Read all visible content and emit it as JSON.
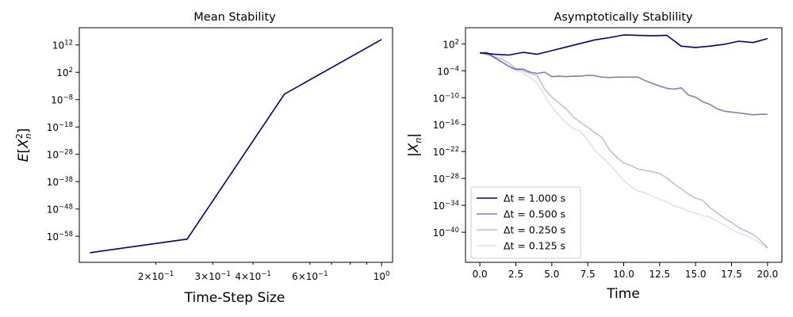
{
  "chart_data": [
    {
      "type": "line",
      "title": "Mean Stability",
      "xlabel": "Time-Step Size",
      "ylabel": "E[X_n^2]",
      "xscale": "log",
      "yscale": "log",
      "xlim_log10": [
        -0.936,
        0.034
      ],
      "ylim_log10": [
        -67.5,
        18.3
      ],
      "color": "#000080",
      "x": [
        0.125,
        0.25,
        0.5,
        1.0
      ],
      "y": [
        1e-64,
        1e-59,
        1e-06,
        100000000000000.0
      ],
      "xticks_major": [
        {
          "v": 1.0,
          "label": "10",
          "exp": "0"
        }
      ],
      "xticks_minor": [
        {
          "v": 0.2,
          "label": "2×10",
          "exp": "−1"
        },
        {
          "v": 0.3,
          "label": "3×10",
          "exp": "−1"
        },
        {
          "v": 0.4,
          "label": "4×10",
          "exp": "−1"
        },
        {
          "v": 0.6,
          "label": "6×10",
          "exp": "−1"
        }
      ],
      "xticks_minor_unlabeled": [
        0.7,
        0.8,
        0.9
      ],
      "yticks": [
        {
          "e": 12,
          "label": "10",
          "exp": "12"
        },
        {
          "e": 2,
          "label": "10",
          "exp": "2"
        },
        {
          "e": -8,
          "label": "10",
          "exp": "−8"
        },
        {
          "e": -18,
          "label": "10",
          "exp": "−18"
        },
        {
          "e": -28,
          "label": "10",
          "exp": "−28"
        },
        {
          "e": -38,
          "label": "10",
          "exp": "−38"
        },
        {
          "e": -48,
          "label": "10",
          "exp": "−48"
        },
        {
          "e": -58,
          "label": "10",
          "exp": "−58"
        }
      ]
    },
    {
      "type": "line",
      "title": "Asymptotically Stablility",
      "xlabel": "Time",
      "ylabel": "|X_n|",
      "yscale": "log",
      "xlim": [
        -1.0,
        21.0
      ],
      "ylim_log10": [
        -46.7,
        5.6
      ],
      "legend_position": "lower-left",
      "xticks": [
        {
          "v": 0,
          "label": "0.0"
        },
        {
          "v": 2.5,
          "label": "2.5"
        },
        {
          "v": 5,
          "label": "5.0"
        },
        {
          "v": 7.5,
          "label": "7.5"
        },
        {
          "v": 10,
          "label": "10.0"
        },
        {
          "v": 12.5,
          "label": "12.5"
        },
        {
          "v": 15,
          "label": "15.0"
        },
        {
          "v": 17.5,
          "label": "17.5"
        },
        {
          "v": 20,
          "label": "20.0"
        }
      ],
      "yticks": [
        {
          "e": 2,
          "label": "10",
          "exp": "2"
        },
        {
          "e": -4,
          "label": "10",
          "exp": "−4"
        },
        {
          "e": -10,
          "label": "10",
          "exp": "−10"
        },
        {
          "e": -16,
          "label": "10",
          "exp": "−16"
        },
        {
          "e": -22,
          "label": "10",
          "exp": "−22"
        },
        {
          "e": -28,
          "label": "10",
          "exp": "−28"
        },
        {
          "e": -34,
          "label": "10",
          "exp": "−34"
        },
        {
          "e": -40,
          "label": "10",
          "exp": "−40"
        }
      ],
      "series": [
        {
          "name": "Δt = 1.000 s",
          "color": "#000080",
          "opacity": 1.0,
          "x": [
            0,
            1,
            2,
            3,
            4,
            5,
            6,
            7,
            8,
            9,
            10,
            11,
            12,
            13,
            14,
            15,
            16,
            17,
            18,
            19,
            20
          ],
          "y_log10": [
            0.0,
            -0.3,
            -0.5,
            0.1,
            -0.3,
            0.5,
            1.3,
            2.1,
            2.9,
            3.4,
            4.0,
            3.9,
            3.8,
            3.9,
            1.5,
            1.2,
            1.5,
            1.9,
            2.6,
            2.3,
            3.2
          ]
        },
        {
          "name": "Δt = 0.500 s",
          "color": "#000080",
          "opacity": 0.5,
          "x": [
            0,
            0.5,
            1,
            1.5,
            2,
            2.5,
            3,
            3.5,
            4,
            4.5,
            5,
            5.5,
            6,
            6.5,
            7,
            7.5,
            8,
            8.5,
            9,
            9.5,
            10,
            10.5,
            11,
            11.5,
            12,
            12.5,
            13,
            13.5,
            14,
            14.5,
            15,
            15.5,
            16,
            16.5,
            17,
            17.5,
            18,
            18.5,
            19,
            19.5,
            20
          ],
          "y_log10": [
            0.0,
            0.1,
            -1.0,
            -2.0,
            -3.0,
            -3.7,
            -3.6,
            -4.3,
            -4.6,
            -4.3,
            -5.3,
            -5.2,
            -5.3,
            -5.2,
            -5.2,
            -5.0,
            -5.1,
            -5.4,
            -5.5,
            -5.4,
            -5.4,
            -5.4,
            -5.4,
            -6.2,
            -6.8,
            -7.4,
            -7.9,
            -8.1,
            -7.8,
            -9.4,
            -9.9,
            -10.9,
            -11.5,
            -12.5,
            -13.0,
            -13.2,
            -13.4,
            -13.6,
            -13.8,
            -13.7,
            -13.7
          ]
        },
        {
          "name": "Δt = 0.250 s",
          "color": "#000080",
          "opacity": 0.25,
          "x": [
            0,
            0.5,
            1,
            1.5,
            2,
            2.5,
            3,
            3.5,
            4,
            4.5,
            5,
            5.5,
            6,
            6.5,
            7,
            7.5,
            8,
            8.5,
            9,
            9.5,
            10,
            10.5,
            11,
            11.5,
            12,
            12.5,
            13,
            13.5,
            14,
            14.5,
            15,
            15.5,
            16,
            16.5,
            17,
            17.5,
            18,
            18.5,
            19,
            19.5,
            20
          ],
          "y_log10": [
            0.0,
            -0.3,
            -0.9,
            -1.4,
            -2.2,
            -3.5,
            -4.0,
            -4.6,
            -5.1,
            -8.1,
            -9.8,
            -11.2,
            -12.5,
            -14.3,
            -15.5,
            -16.6,
            -17.8,
            -18.9,
            -21.6,
            -23.2,
            -24.6,
            -25.1,
            -25.9,
            -26.2,
            -26.5,
            -26.9,
            -27.9,
            -29.2,
            -30.3,
            -31.5,
            -32.4,
            -32.9,
            -34.5,
            -35.7,
            -36.9,
            -37.8,
            -39.0,
            -39.7,
            -40.5,
            -41.8,
            -43.5
          ]
        },
        {
          "name": "Δt = 0.125 s",
          "color": "#000080",
          "opacity": 0.12,
          "x": [
            0,
            0.5,
            1,
            1.5,
            2,
            2.5,
            3,
            3.5,
            4,
            4.5,
            5,
            5.5,
            6,
            6.5,
            7,
            7.5,
            8,
            8.5,
            9,
            9.5,
            10,
            10.5,
            11,
            11.5,
            12,
            12.5,
            13,
            13.5,
            14,
            14.5,
            15,
            15.5,
            16,
            16.5,
            17,
            17.5,
            18,
            18.5,
            19,
            19.5,
            20
          ],
          "y_log10": [
            0.0,
            -0.4,
            -1.2,
            -2.0,
            -2.8,
            -3.8,
            -4.5,
            -5.5,
            -6.8,
            -9.5,
            -12.0,
            -14.0,
            -15.6,
            -16.8,
            -17.5,
            -19.5,
            -21.8,
            -23.3,
            -24.8,
            -26.6,
            -28.5,
            -29.8,
            -30.8,
            -31.2,
            -31.9,
            -32.7,
            -33.2,
            -34.1,
            -34.6,
            -35.3,
            -35.8,
            -36.3,
            -36.6,
            -37.5,
            -38.4,
            -39.4,
            -40.2,
            -40.7,
            -41.5,
            -42.4,
            -43.5
          ]
        }
      ]
    }
  ]
}
